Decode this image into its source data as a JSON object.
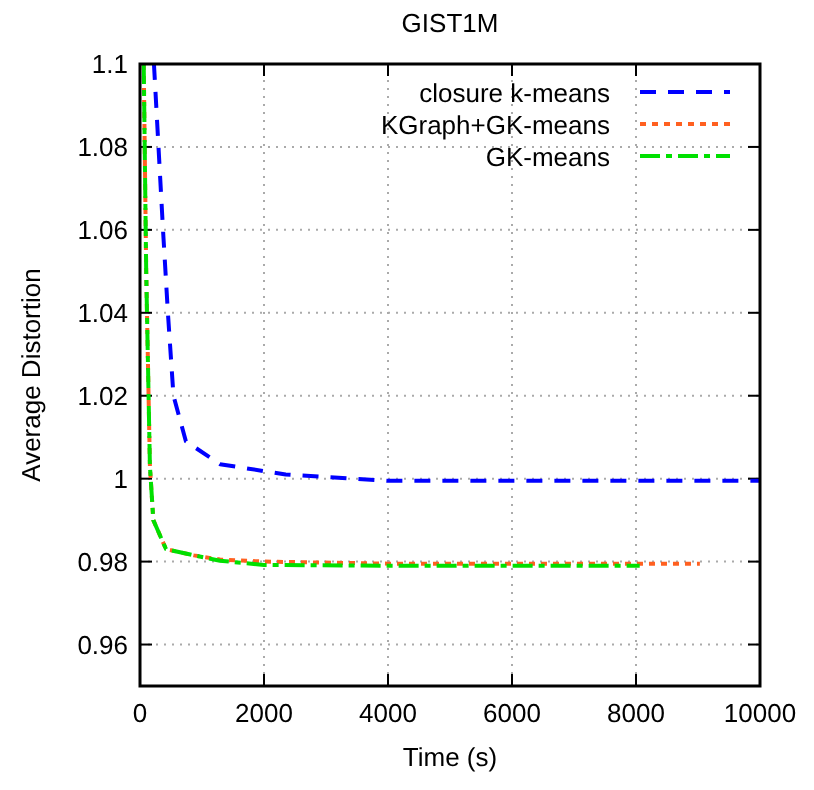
{
  "chart_data": {
    "type": "line",
    "title": "GIST1M",
    "xlabel": "Time (s)",
    "ylabel": "Average Distortion",
    "xlim": [
      0,
      10000
    ],
    "ylim": [
      0.95,
      1.1
    ],
    "xticks": [
      0,
      2000,
      4000,
      6000,
      8000,
      10000
    ],
    "yticks": [
      {
        "value": 0.96,
        "label": "0.96"
      },
      {
        "value": 0.98,
        "label": "0.98"
      },
      {
        "value": 1,
        "label": "1"
      },
      {
        "value": 1.02,
        "label": "1.02"
      },
      {
        "value": 1.04,
        "label": "1.04"
      },
      {
        "value": 1.06,
        "label": "1.06"
      },
      {
        "value": 1.08,
        "label": "1.08"
      },
      {
        "value": 1.1,
        "label": "1.1"
      }
    ],
    "grid": true,
    "legend": "top right",
    "series": [
      {
        "name": "closure k-means",
        "color": "#0000ff",
        "line_style": "dashed",
        "x": [
          225,
          375,
          450,
          540,
          740,
          1290,
          2350,
          4000,
          6000,
          8000,
          10000
        ],
        "values": [
          1.1,
          1.059,
          1.04,
          1.02,
          1.009,
          1.0035,
          1.001,
          0.9995,
          0.9995,
          0.9995,
          0.9995
        ]
      },
      {
        "name": "KGraph+GK-means",
        "color": "#ff6020",
        "line_style": "dotted",
        "x": [
          60,
          100,
          160,
          215,
          420,
          870,
          1290,
          2000,
          4000,
          6000,
          9030
        ],
        "values": [
          1.1,
          1.05,
          1.003,
          0.99,
          0.983,
          0.9815,
          0.9805,
          0.98,
          0.9795,
          0.9795,
          0.9795
        ]
      },
      {
        "name": "GK-means",
        "color": "#00e000",
        "line_style": "dashdot",
        "x": [
          60,
          100,
          160,
          215,
          420,
          870,
          1290,
          2000,
          4000,
          6000,
          8060
        ],
        "values": [
          1.1,
          1.05,
          1.003,
          0.99,
          0.983,
          0.9815,
          0.9802,
          0.9792,
          0.979,
          0.979,
          0.979
        ]
      }
    ]
  }
}
